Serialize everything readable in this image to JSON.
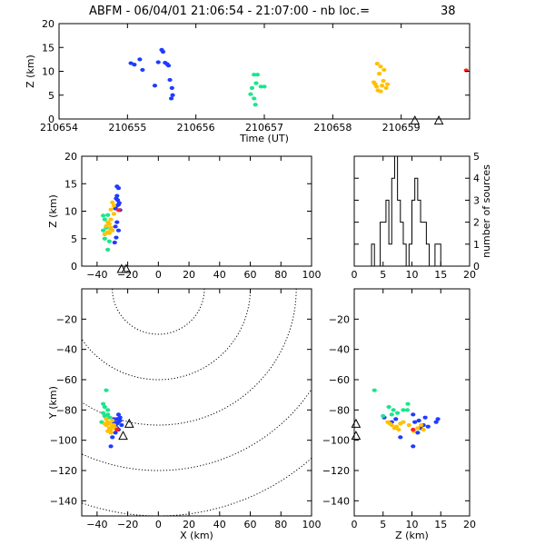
{
  "title": {
    "prefix": "ABFM - 06/04/01 21:06:54 - 21:07:00 - nb loc.=",
    "count": "38"
  },
  "colors": {
    "blue": "#1e3cff",
    "green": "#19e68c",
    "yellow": "#ffc000",
    "red": "#ff2020",
    "line": "#000000"
  },
  "chart_data": [
    {
      "id": "time-height",
      "type": "scatter",
      "xlabel": "Time (UT)",
      "ylabel": "Z (km)",
      "xlim": [
        210654,
        210660
      ],
      "ylim": [
        0,
        20
      ],
      "xticks": [
        210654,
        210655,
        210656,
        210657,
        210658,
        210659
      ],
      "xtick_labels": [
        "210654",
        "210655",
        "210656",
        "210657",
        "210658",
        "210659"
      ],
      "yticks": [
        0,
        5,
        10,
        15,
        20
      ],
      "ytick_labels": [
        "0",
        "5",
        "10",
        "15",
        "20"
      ],
      "series": [
        {
          "color": "blue",
          "points": [
            [
              210655.05,
              11.7
            ],
            [
              210655.1,
              11.4
            ],
            [
              210655.18,
              12.5
            ],
            [
              210655.22,
              10.3
            ],
            [
              210655.45,
              11.9
            ],
            [
              210655.5,
              14.5
            ],
            [
              210655.52,
              14.1
            ],
            [
              210655.55,
              11.8
            ],
            [
              210655.58,
              11.5
            ],
            [
              210655.4,
              7.0
            ],
            [
              210655.62,
              8.2
            ],
            [
              210655.65,
              6.5
            ],
            [
              210655.66,
              5.0
            ],
            [
              210655.64,
              4.3
            ],
            [
              210655.6,
              11.2
            ]
          ]
        },
        {
          "color": "green",
          "points": [
            [
              210656.85,
              9.3
            ],
            [
              210656.9,
              9.3
            ],
            [
              210656.88,
              7.5
            ],
            [
              210656.95,
              6.8
            ],
            [
              210656.82,
              6.5
            ],
            [
              210656.8,
              5.2
            ],
            [
              210656.85,
              4.3
            ],
            [
              210656.87,
              3.0
            ],
            [
              210657.0,
              6.8
            ]
          ]
        },
        {
          "color": "yellow",
          "points": [
            [
              210658.65,
              11.6
            ],
            [
              210658.7,
              11.0
            ],
            [
              210658.75,
              10.3
            ],
            [
              210658.68,
              9.5
            ],
            [
              210658.6,
              7.7
            ],
            [
              210658.62,
              7.3
            ],
            [
              210658.72,
              7.0
            ],
            [
              210658.78,
              6.5
            ],
            [
              210658.66,
              6.0
            ],
            [
              210658.7,
              5.8
            ],
            [
              210658.8,
              7.3
            ],
            [
              210658.74,
              8.0
            ],
            [
              210658.64,
              6.8
            ]
          ]
        },
        {
          "color": "red",
          "points": [
            [
              210659.95,
              10.2
            ]
          ]
        }
      ],
      "stations": [
        [
          210659.2,
          -0.3
        ],
        [
          210659.55,
          -0.3
        ]
      ]
    },
    {
      "id": "x-z",
      "type": "scatter",
      "xlabel": "",
      "ylabel": "Z (km)",
      "xlim": [
        -50,
        100
      ],
      "ylim": [
        0,
        20
      ],
      "xticks": [
        -40,
        -20,
        0,
        20,
        40,
        60,
        80,
        100
      ],
      "xtick_labels": [
        "−40",
        "−20",
        "0",
        "20",
        "40",
        "60",
        "80",
        "100"
      ],
      "yticks": [
        0,
        5,
        10,
        15,
        20
      ],
      "ytick_labels": [
        "0",
        "5",
        "10",
        "15",
        "20"
      ],
      "series": [
        {
          "color": "blue",
          "points": [
            [
              -27,
              14.5
            ],
            [
              -26,
              14.2
            ],
            [
              -27.5,
              12.3
            ],
            [
              -26.5,
              12.0
            ],
            [
              -25.5,
              11.5
            ],
            [
              -27,
              11.0
            ],
            [
              -28,
              10.5
            ],
            [
              -25,
              10.2
            ],
            [
              -27,
              8.0
            ],
            [
              -28,
              7.2
            ],
            [
              -26,
              6.5
            ],
            [
              -27.5,
              5.2
            ],
            [
              -28.5,
              4.3
            ],
            [
              -27,
              12.8
            ],
            [
              -26,
              11.2
            ]
          ]
        },
        {
          "color": "green",
          "points": [
            [
              -36,
              9.2
            ],
            [
              -35,
              8.5
            ],
            [
              -33,
              9.3
            ],
            [
              -34,
              7.0
            ],
            [
              -36,
              6.5
            ],
            [
              -32,
              4.5
            ],
            [
              -33,
              3.0
            ],
            [
              -35,
              5.0
            ],
            [
              -31,
              6.8
            ]
          ]
        },
        {
          "color": "yellow",
          "points": [
            [
              -30,
              11.6
            ],
            [
              -29,
              11.0
            ],
            [
              -31,
              10.3
            ],
            [
              -29,
              9.5
            ],
            [
              -33,
              8.0
            ],
            [
              -32,
              7.7
            ],
            [
              -34,
              7.3
            ],
            [
              -31,
              7.0
            ],
            [
              -30,
              6.5
            ],
            [
              -33,
              6.2
            ],
            [
              -35,
              5.8
            ],
            [
              -31,
              8.5
            ],
            [
              -32,
              6.0
            ]
          ]
        },
        {
          "color": "red",
          "points": [
            [
              -26,
              10.2
            ]
          ]
        }
      ],
      "stations": [
        [
          -24,
          -0.5
        ],
        [
          -21,
          -0.5
        ]
      ]
    },
    {
      "id": "histogram",
      "type": "bar",
      "xlabel": "",
      "ylabel": "number of sources",
      "xlim": [
        0,
        20
      ],
      "ylim": [
        0,
        5
      ],
      "xticks": [
        0,
        5,
        10,
        15,
        20
      ],
      "xtick_labels": [
        "0",
        "5",
        "10",
        "15",
        "20"
      ],
      "yticks": [
        0,
        1,
        2,
        3,
        4,
        5
      ],
      "ytick_labels": [
        "0",
        "1",
        "2",
        "3",
        "4",
        "5"
      ],
      "bin_width": 0.5,
      "bins": [
        [
          3,
          1
        ],
        [
          3.5,
          0
        ],
        [
          4,
          0
        ],
        [
          4.5,
          2
        ],
        [
          5,
          2
        ],
        [
          5.5,
          3
        ],
        [
          6,
          1
        ],
        [
          6.5,
          4
        ],
        [
          7,
          5
        ],
        [
          7.5,
          3
        ],
        [
          8,
          2
        ],
        [
          8.5,
          1
        ],
        [
          9,
          0
        ],
        [
          9.5,
          1
        ],
        [
          10,
          3
        ],
        [
          10.5,
          4
        ],
        [
          11,
          3
        ],
        [
          11.5,
          2
        ],
        [
          12,
          2
        ],
        [
          12.5,
          1
        ],
        [
          13,
          0
        ],
        [
          13.5,
          0
        ],
        [
          14,
          1
        ],
        [
          14.5,
          1
        ]
      ]
    },
    {
      "id": "x-y",
      "type": "scatter",
      "xlabel": "X (km)",
      "ylabel": "Y (km)",
      "xlim": [
        -50,
        100
      ],
      "ylim": [
        -150,
        0
      ],
      "xticks": [
        -40,
        -20,
        0,
        20,
        40,
        60,
        80,
        100
      ],
      "xtick_labels": [
        "−40",
        "−20",
        "0",
        "20",
        "40",
        "60",
        "80",
        "100"
      ],
      "yticks": [
        -140,
        -120,
        -100,
        -80,
        -60,
        -40,
        -20
      ],
      "ytick_labels": [
        "−140",
        "−120",
        "−100",
        "−80",
        "−60",
        "−40",
        "−20"
      ],
      "rings": {
        "center": [
          0,
          0
        ],
        "radii": [
          30,
          60,
          90,
          120,
          150
        ]
      },
      "series": [
        {
          "color": "blue",
          "points": [
            [
              -27,
              -86
            ],
            [
              -26,
              -88
            ],
            [
              -25,
              -85
            ],
            [
              -24,
              -90
            ],
            [
              -27,
              -92
            ],
            [
              -28,
              -95
            ],
            [
              -29,
              -88
            ],
            [
              -26,
              -83
            ],
            [
              -30,
              -98
            ],
            [
              -31,
              -104
            ],
            [
              -28,
              -91
            ],
            [
              -25,
              -87
            ],
            [
              -27,
              -89
            ],
            [
              -26,
              -93
            ],
            [
              -29,
              -86
            ]
          ]
        },
        {
          "color": "green",
          "points": [
            [
              -34,
              -67
            ],
            [
              -35,
              -78
            ],
            [
              -33,
              -80
            ],
            [
              -36,
              -82
            ],
            [
              -32,
              -85
            ],
            [
              -37,
              -88
            ],
            [
              -35,
              -84
            ],
            [
              -33,
              -83
            ],
            [
              -36,
              -76
            ]
          ]
        },
        {
          "color": "yellow",
          "points": [
            [
              -33,
              -88
            ],
            [
              -34,
              -90
            ],
            [
              -32,
              -92
            ],
            [
              -30,
              -91
            ],
            [
              -31,
              -93
            ],
            [
              -35,
              -89
            ],
            [
              -29,
              -90
            ],
            [
              -33,
              -94
            ],
            [
              -32,
              -89
            ],
            [
              -30,
              -87
            ],
            [
              -34,
              -86
            ],
            [
              -31,
              -95
            ],
            [
              -28,
              -92
            ]
          ]
        },
        {
          "color": "red",
          "points": [
            [
              -27,
              -93
            ]
          ]
        }
      ],
      "stations": [
        [
          -19,
          -89
        ],
        [
          -23,
          -97
        ]
      ]
    },
    {
      "id": "z-y",
      "type": "scatter",
      "xlabel": "Z (km)",
      "ylabel": "",
      "xlim": [
        0,
        20
      ],
      "ylim": [
        -150,
        0
      ],
      "xticks": [
        0,
        5,
        10,
        15,
        20
      ],
      "xtick_labels": [
        "0",
        "5",
        "10",
        "15",
        "20"
      ],
      "yticks": [
        -140,
        -120,
        -100,
        -80,
        -60,
        -40,
        -20
      ],
      "ytick_labels": [
        "−140",
        "−120",
        "−100",
        "−80",
        "−60",
        "−40",
        "−20"
      ],
      "series": [
        {
          "color": "blue",
          "points": [
            [
              14.5,
              -86
            ],
            [
              14.2,
              -88
            ],
            [
              12.3,
              -85
            ],
            [
              12.0,
              -90
            ],
            [
              11.5,
              -92
            ],
            [
              11.0,
              -95
            ],
            [
              10.5,
              -88
            ],
            [
              10.2,
              -83
            ],
            [
              8.0,
              -98
            ],
            [
              7.2,
              -86
            ],
            [
              6.5,
              -88
            ],
            [
              5.2,
              -85
            ],
            [
              10.2,
              -104
            ],
            [
              12.8,
              -91
            ],
            [
              11.2,
              -87
            ]
          ]
        },
        {
          "color": "green",
          "points": [
            [
              3.5,
              -67
            ],
            [
              6.0,
              -78
            ],
            [
              6.8,
              -80
            ],
            [
              7.5,
              -82
            ],
            [
              8.5,
              -80
            ],
            [
              9.2,
              -80
            ],
            [
              5.0,
              -84
            ],
            [
              6.5,
              -83
            ],
            [
              9.3,
              -76
            ]
          ]
        },
        {
          "color": "yellow",
          "points": [
            [
              5.8,
              -88
            ],
            [
              6.5,
              -90
            ],
            [
              7.0,
              -92
            ],
            [
              7.3,
              -91
            ],
            [
              7.7,
              -93
            ],
            [
              8.0,
              -89
            ],
            [
              9.5,
              -90
            ],
            [
              10.3,
              -94
            ],
            [
              11.0,
              -92
            ],
            [
              11.6,
              -90
            ],
            [
              12.0,
              -93
            ],
            [
              8.5,
              -88
            ],
            [
              6.2,
              -89
            ]
          ]
        },
        {
          "color": "red",
          "points": [
            [
              10.2,
              -93
            ]
          ]
        }
      ],
      "stations": [
        [
          0.3,
          -89
        ],
        [
          0.3,
          -97
        ]
      ]
    }
  ]
}
